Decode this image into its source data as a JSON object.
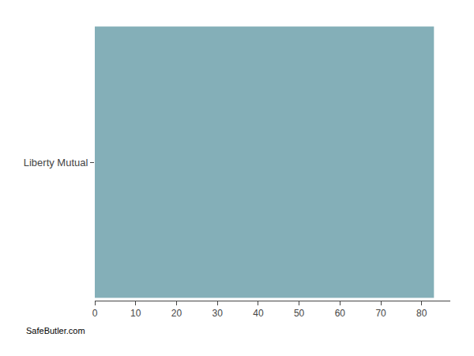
{
  "chart_data": {
    "type": "bar",
    "orientation": "horizontal",
    "categories": [
      "Liberty Mutual"
    ],
    "values": [
      83
    ],
    "color": "#84afb8",
    "xlim": [
      0,
      87
    ],
    "xticks": [
      0,
      10,
      20,
      30,
      40,
      50,
      60,
      70,
      80
    ],
    "grid": false,
    "tick_labels": true,
    "annotations": [
      "SafeButler.com"
    ]
  }
}
